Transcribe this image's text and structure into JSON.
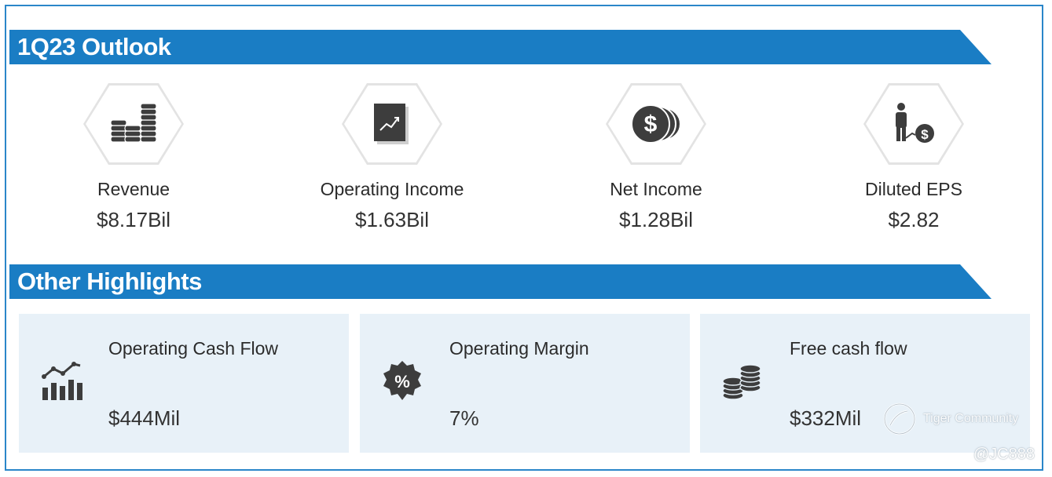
{
  "outlook": {
    "title": "1Q23 Outlook",
    "metrics": [
      {
        "label": "Revenue",
        "value": "$8.17Bil",
        "icon": "coin-stacks-icon"
      },
      {
        "label": "Operating Income",
        "value": "$1.63Bil",
        "icon": "growth-report-icon"
      },
      {
        "label": "Net Income",
        "value": "$1.28Bil",
        "icon": "dollar-coins-icon"
      },
      {
        "label": "Diluted EPS",
        "value": "$2.82",
        "icon": "person-dollar-icon"
      }
    ]
  },
  "highlights": {
    "title": "Other Highlights",
    "cards": [
      {
        "label": "Operating Cash Flow",
        "value": "$444Mil",
        "icon": "bar-line-chart-icon"
      },
      {
        "label": "Operating Margin",
        "value": "7%",
        "icon": "percent-badge-icon"
      },
      {
        "label": "Free cash flow",
        "value": "$332Mil",
        "icon": "coin-stacks-icon"
      }
    ]
  },
  "watermark": {
    "brand": "Tiger Community",
    "handle": "@JC888"
  },
  "colors": {
    "banner": "#1a7dc4",
    "card_bg": "#e8f1f8",
    "icon": "#3a3a3a"
  }
}
